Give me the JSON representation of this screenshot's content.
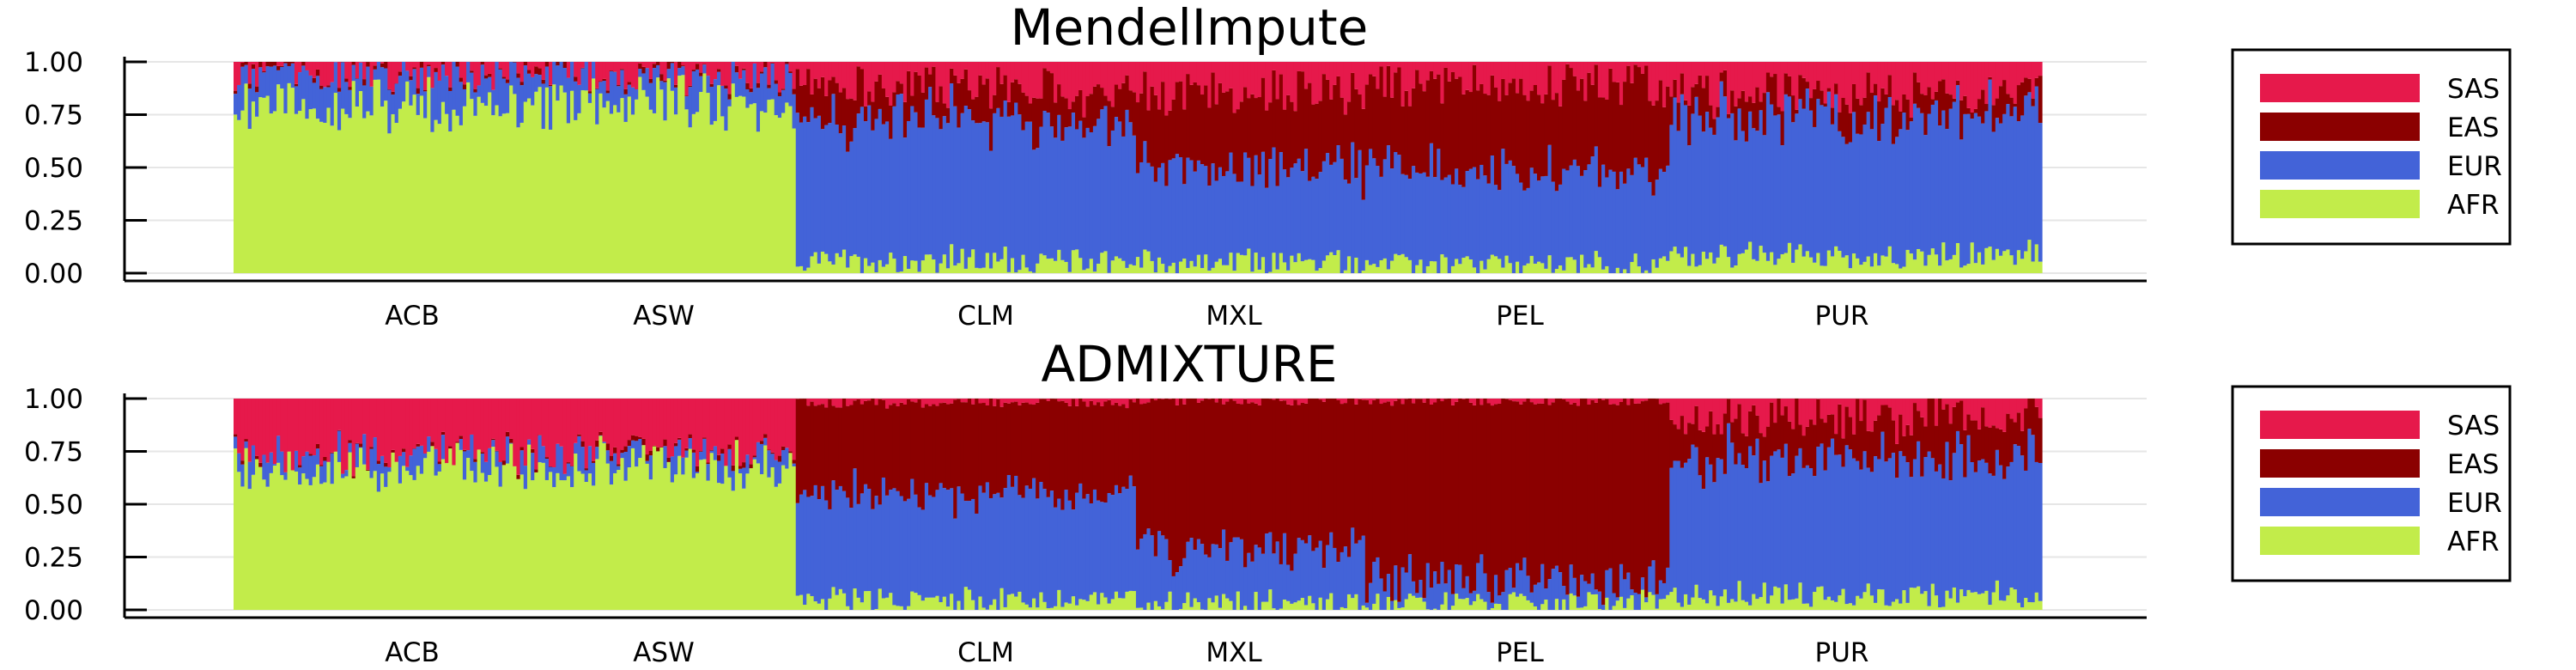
{
  "colors": {
    "SAS": "#e6194b",
    "EAS": "#8b0000",
    "EUR": "#4363d8",
    "AFR": "#c2ec4a"
  },
  "legend": [
    "SAS",
    "EAS",
    "EUR",
    "AFR"
  ],
  "chart_data": [
    {
      "type": "bar",
      "stacked": true,
      "title": "MendelImpute",
      "xlabel": "",
      "ylabel": "",
      "ylim": [
        0,
        1
      ],
      "yticks": [
        "0.00",
        "0.25",
        "0.50",
        "0.75",
        "1.00"
      ],
      "legend_position": "right",
      "grid": true,
      "categories": [
        "ACB",
        "ASW",
        "CLM",
        "MXL",
        "PEL",
        "PUR"
      ],
      "series_order": [
        "AFR",
        "EUR",
        "EAS",
        "SAS"
      ],
      "series": [
        {
          "name": "AFR",
          "values": [
            0.8,
            0.8,
            0.06,
            0.05,
            0.04,
            0.08
          ]
        },
        {
          "name": "EUR",
          "values": [
            0.15,
            0.14,
            0.66,
            0.45,
            0.44,
            0.65
          ]
        },
        {
          "name": "EAS",
          "values": [
            0.01,
            0.01,
            0.15,
            0.35,
            0.4,
            0.12
          ]
        },
        {
          "name": "SAS",
          "values": [
            0.04,
            0.05,
            0.13,
            0.15,
            0.12,
            0.15
          ]
        }
      ]
    },
    {
      "type": "bar",
      "stacked": true,
      "title": "ADMIXTURE",
      "xlabel": "",
      "ylabel": "",
      "ylim": [
        0,
        1
      ],
      "yticks": [
        "0.00",
        "0.25",
        "0.50",
        "0.75",
        "1.00"
      ],
      "legend_position": "right",
      "grid": true,
      "categories": [
        "ACB",
        "ASW",
        "CLM",
        "MXL",
        "PEL",
        "PUR"
      ],
      "series_order": [
        "AFR",
        "EUR",
        "EAS",
        "SAS"
      ],
      "series": [
        {
          "name": "AFR",
          "values": [
            0.68,
            0.68,
            0.05,
            0.04,
            0.03,
            0.07
          ]
        },
        {
          "name": "EUR",
          "values": [
            0.06,
            0.06,
            0.5,
            0.25,
            0.12,
            0.64
          ]
        },
        {
          "name": "EAS",
          "values": [
            0.0,
            0.01,
            0.43,
            0.7,
            0.84,
            0.2
          ]
        },
        {
          "name": "SAS",
          "values": [
            0.26,
            0.25,
            0.02,
            0.01,
            0.01,
            0.09
          ]
        }
      ]
    }
  ]
}
